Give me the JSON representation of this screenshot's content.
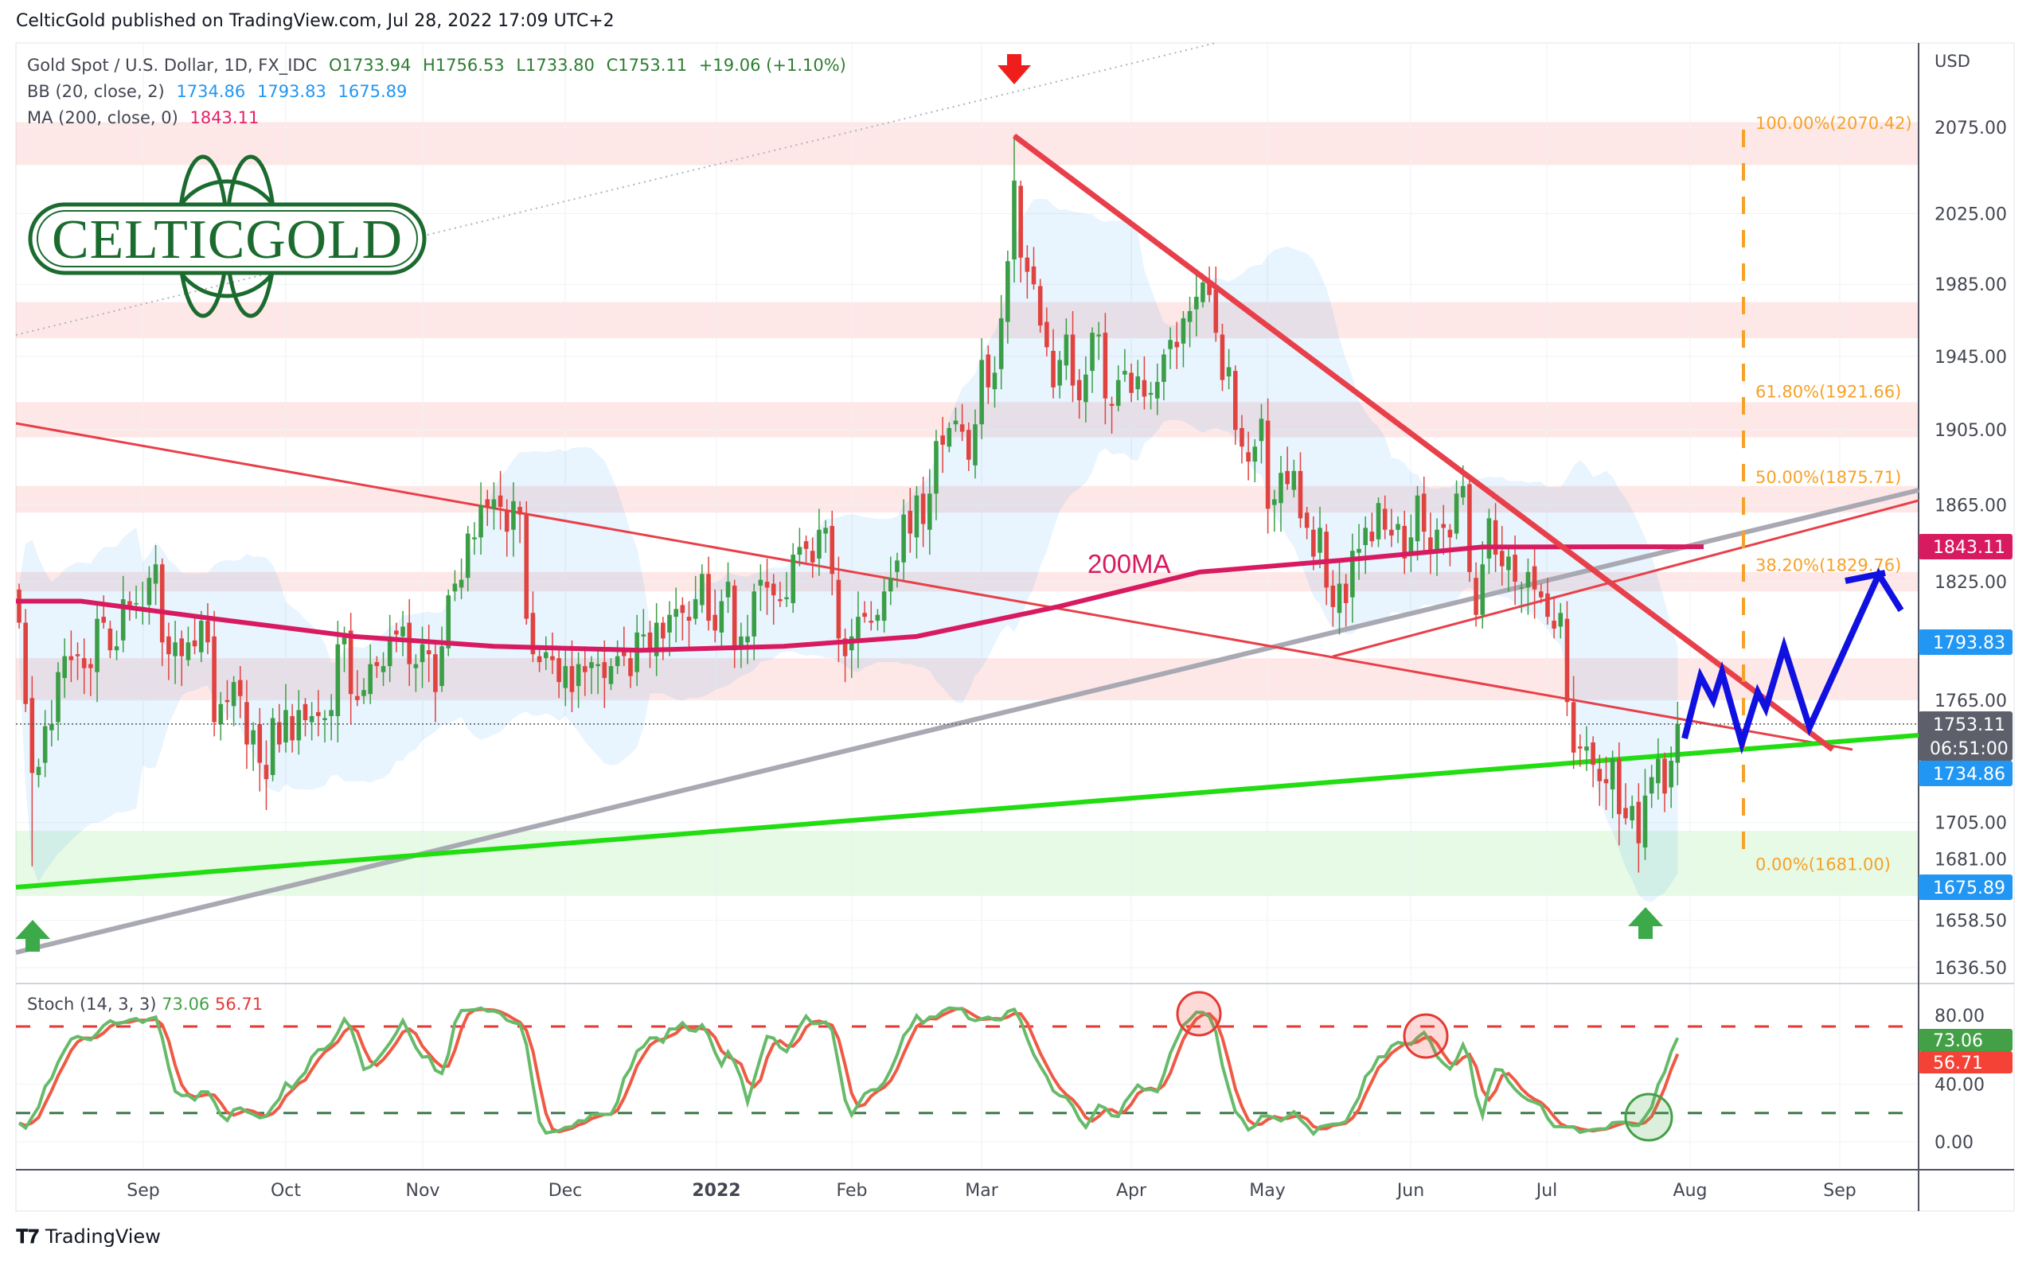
{
  "header": {
    "published": "CelticGold published on TradingView.com, Jul 28, 2022 17:09 UTC+2"
  },
  "legend": {
    "symbol": "Gold Spot / U.S. Dollar, 1D, FX_IDC",
    "open": "O1733.94",
    "high": "H1756.53",
    "low": "L1733.80",
    "close": "C1753.11",
    "change": "+19.06 (+1.10%)",
    "bb_label": "BB (20, close, 2)",
    "bb_basis": "1734.86",
    "bb_upper": "1793.83",
    "bb_lower": "1675.89",
    "ma_label": "MA (200, close, 0)",
    "ma_value": "1843.11"
  },
  "stoch_legend": {
    "label": "Stoch (14, 3, 3)",
    "k": "73.06",
    "d": "56.71"
  },
  "logo": {
    "text": "CELTICGOLD"
  },
  "branding": {
    "text": "TradingView"
  },
  "colors": {
    "up": "#3b9e47",
    "down": "#e0433f",
    "ma": "#d81b60",
    "bb": "#2196f3",
    "fib": "#f7a128",
    "trend_red": "#e8404a",
    "trend_green": "#22dd11",
    "trend_gray": "#a9a9b3",
    "projection": "#1010e0"
  },
  "chart_data": {
    "type": "candlestick",
    "scale": "log",
    "currency": "USD",
    "ylim": [
      1625,
      2110
    ],
    "y_ticks": [
      "2075.00",
      "2025.00",
      "1985.00",
      "1945.00",
      "1905.00",
      "1865.00",
      "1825.00",
      "1765.00",
      "1705.00",
      "1681.00",
      "1658.50",
      "1636.50"
    ],
    "x_ticks": [
      "Sep",
      "Oct",
      "Nov",
      "Dec",
      "2022",
      "Feb",
      "Mar",
      "Apr",
      "May",
      "Jun",
      "Jul",
      "Aug",
      "Sep"
    ],
    "months": [
      {
        "month": "2021-08",
        "closes": [
          1804,
          1763,
          1729,
          1732,
          1752,
          1753,
          1779,
          1787,
          1785,
          1787,
          1781,
          1781,
          1806,
          1804,
          1790,
          1792,
          1816,
          1812,
          1814
        ]
      },
      {
        "month": "2021-09",
        "closes": [
          1812,
          1827,
          1834,
          1794,
          1788,
          1794,
          1787,
          1794,
          1792,
          1805,
          1794,
          1754,
          1763,
          1764,
          1774,
          1767,
          1743,
          1750,
          1734,
          1726,
          1756,
          1743
        ]
      },
      {
        "month": "2021-10",
        "closes": [
          1760,
          1745,
          1760,
          1755,
          1757,
          1757,
          1756,
          1760,
          1793,
          1797,
          1768,
          1765,
          1770,
          1783,
          1782,
          1782,
          1797,
          1798,
          1802,
          1783,
          1783
        ]
      },
      {
        "month": "2021-11",
        "closes": [
          1793,
          1788,
          1769,
          1792,
          1818,
          1824,
          1826,
          1850,
          1848,
          1865,
          1864,
          1868,
          1864,
          1851,
          1867,
          1860,
          1806,
          1788,
          1784,
          1789,
          1785,
          1774
        ]
      },
      {
        "month": "2021-12",
        "closes": [
          1782,
          1769,
          1783,
          1779,
          1784,
          1783,
          1776,
          1782,
          1787,
          1787,
          1777,
          1799,
          1798,
          1790,
          1804,
          1796,
          1808,
          1811,
          1809,
          1805,
          1816,
          1829,
          1805
        ]
      },
      {
        "month": "2022-01",
        "closes": [
          1800,
          1815,
          1825,
          1790,
          1797,
          1797,
          1820,
          1826,
          1822,
          1818,
          1815,
          1817,
          1839,
          1843,
          1842,
          1835,
          1852,
          1853,
          1829,
          1796,
          1787
        ]
      },
      {
        "month": "2022-02",
        "closes": [
          1797,
          1807,
          1807,
          1804,
          1808,
          1820,
          1827,
          1836,
          1860,
          1850,
          1870,
          1855,
          1871,
          1899,
          1897,
          1906,
          1910,
          1904,
          1889,
          1908
        ]
      },
      {
        "month": "2022-03",
        "closes": [
          1943,
          1928,
          1936,
          1966,
          1998,
          2044,
          2000,
          1992,
          1985,
          1962,
          1950,
          1928,
          1943,
          1957,
          1929,
          1921,
          1935,
          1958,
          1957,
          1922,
          1918,
          1932,
          1937
        ]
      },
      {
        "month": "2022-04",
        "closes": [
          1925,
          1934,
          1923,
          1925,
          1931,
          1946,
          1954,
          1950,
          1966,
          1970,
          1978,
          1986,
          1979,
          1958,
          1932,
          1939,
          1905,
          1896,
          1888,
          1896,
          1911
        ]
      },
      {
        "month": "2022-05",
        "closes": [
          1863,
          1868,
          1882,
          1876,
          1883,
          1858,
          1853,
          1838,
          1853,
          1822,
          1812,
          1824,
          1814,
          1841,
          1842,
          1853,
          1846,
          1866,
          1852,
          1849,
          1855,
          1837
        ]
      },
      {
        "month": "2022-06",
        "closes": [
          1848,
          1870,
          1851,
          1841,
          1852,
          1853,
          1848,
          1871,
          1875,
          1830,
          1808,
          1834,
          1858,
          1839,
          1833,
          1838,
          1825,
          1822,
          1830,
          1821,
          1817,
          1807
        ]
      },
      {
        "month": "2022-07",
        "closes": [
          1801,
          1809,
          1764,
          1739,
          1741,
          1742,
          1733,
          1725,
          1724,
          1736,
          1709,
          1707,
          1713,
          1695,
          1718,
          1727,
          1736,
          1719,
          1735,
          1753.11
        ]
      }
    ],
    "extremes": [
      {
        "month": "2021-08",
        "low": 1684
      },
      {
        "month": "2022-03",
        "high": 2070.42
      },
      {
        "month": "2022-07",
        "low": 1681
      }
    ],
    "ma200_monthly": [
      {
        "month": "2021-08",
        "value": 1815
      },
      {
        "month": "2021-09",
        "value": 1806
      },
      {
        "month": "2021-10",
        "value": 1797
      },
      {
        "month": "2021-11",
        "value": 1792
      },
      {
        "month": "2021-12",
        "value": 1790
      },
      {
        "month": "2022-01",
        "value": 1792
      },
      {
        "month": "2022-02",
        "value": 1797
      },
      {
        "month": "2022-03",
        "value": 1812
      },
      {
        "month": "2022-04",
        "value": 1830
      },
      {
        "month": "2022-05",
        "value": 1836
      },
      {
        "month": "2022-06",
        "value": 1843
      },
      {
        "month": "2022-07",
        "value": 1843.11
      }
    ],
    "ma_label": "200MA",
    "resistance_zones": [
      [
        2053,
        2078
      ],
      [
        1955,
        1975
      ],
      [
        1901,
        1920
      ],
      [
        1861,
        1875
      ],
      [
        1820,
        1830
      ],
      [
        1765,
        1786
      ]
    ],
    "support_zones": [
      [
        1670,
        1701
      ]
    ],
    "fibonacci": [
      {
        "label": "100.00%(2070.42)",
        "price": 2070.42
      },
      {
        "label": "61.80%(1921.66)",
        "price": 1921.66
      },
      {
        "label": "50.00%(1875.71)",
        "price": 1875.71
      },
      {
        "label": "38.20%(1829.76)",
        "price": 1829.76
      },
      {
        "label": "0.00%(1681.00)",
        "price": 1681.0
      }
    ],
    "price_labels": {
      "ma": "1843.11",
      "bb_upper": "1793.83",
      "last": "1753.11",
      "countdown": "06:51:00",
      "bb_basis": "1734.86",
      "bb_lower": "1675.89"
    },
    "stochastic": {
      "k_period": 14,
      "smooth_k": 3,
      "d": 3,
      "upper_band": 80,
      "lower_band": 20,
      "y_ticks": [
        "80.00",
        "40.00",
        "0.00"
      ],
      "last_k": "73.06",
      "last_d": "56.71"
    }
  }
}
